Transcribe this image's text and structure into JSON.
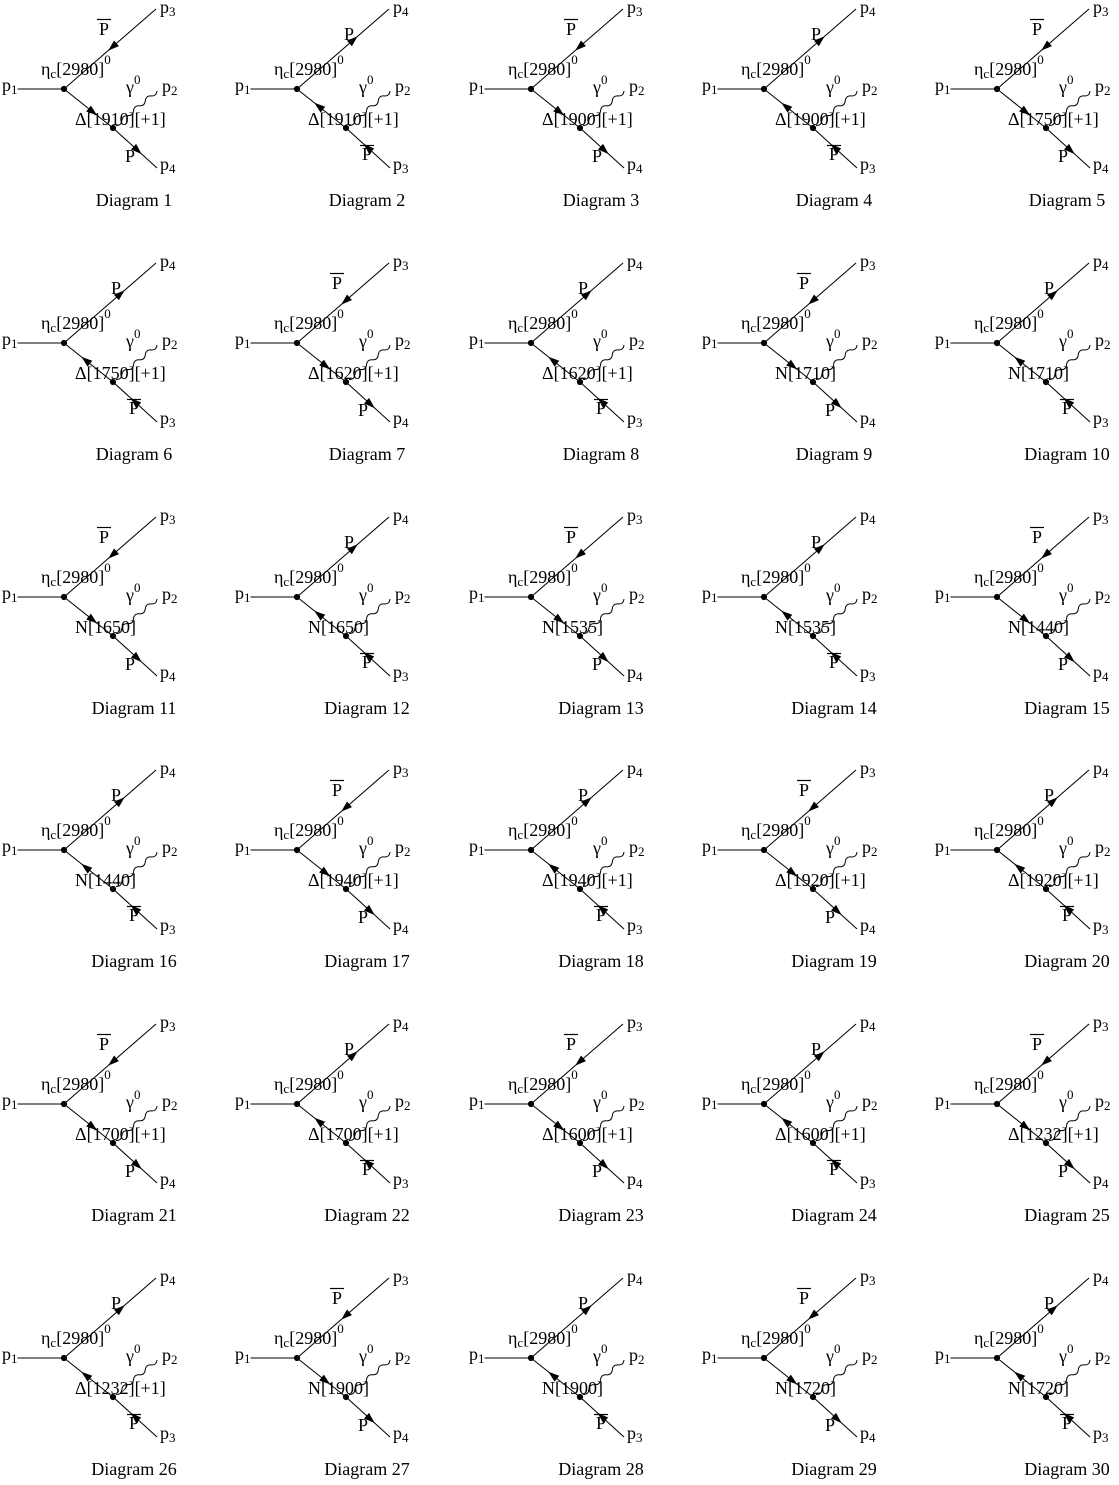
{
  "page": {
    "background": "#ffffff",
    "ink": "#000000"
  },
  "shared": {
    "incoming_momentum": {
      "base": "p",
      "sub": "1"
    },
    "photon_momentum": {
      "base": "p",
      "sub": "2"
    },
    "initial_state": {
      "symbol": "η",
      "sub": "c",
      "mass": "[2980]",
      "charge_sup": "0"
    },
    "photon": {
      "symbol": "γ",
      "sup": "0"
    }
  },
  "diagrams": [
    {
      "number": 1,
      "caption": "Diagram 1",
      "resonance": "Δ[1910][+1]",
      "variant": "a",
      "top": {
        "particle": "P",
        "antibar": true,
        "momentum": {
          "base": "p",
          "sub": "3"
        }
      },
      "bottom": {
        "particle": "P",
        "antibar": false,
        "momentum": {
          "base": "p",
          "sub": "4"
        }
      }
    },
    {
      "number": 2,
      "caption": "Diagram 2",
      "resonance": "Δ[1910][+1]",
      "variant": "b",
      "top": {
        "particle": "P",
        "antibar": false,
        "momentum": {
          "base": "p",
          "sub": "4"
        }
      },
      "bottom": {
        "particle": "P",
        "antibar": true,
        "momentum": {
          "base": "p",
          "sub": "3"
        }
      }
    },
    {
      "number": 3,
      "caption": "Diagram 3",
      "resonance": "Δ[1900][+1]",
      "variant": "a",
      "top": {
        "particle": "P",
        "antibar": true,
        "momentum": {
          "base": "p",
          "sub": "3"
        }
      },
      "bottom": {
        "particle": "P",
        "antibar": false,
        "momentum": {
          "base": "p",
          "sub": "4"
        }
      }
    },
    {
      "number": 4,
      "caption": "Diagram 4",
      "resonance": "Δ[1900][+1]",
      "variant": "b",
      "top": {
        "particle": "P",
        "antibar": false,
        "momentum": {
          "base": "p",
          "sub": "4"
        }
      },
      "bottom": {
        "particle": "P",
        "antibar": true,
        "momentum": {
          "base": "p",
          "sub": "3"
        }
      }
    },
    {
      "number": 5,
      "caption": "Diagram 5",
      "resonance": "Δ[1750][+1]",
      "variant": "a",
      "top": {
        "particle": "P",
        "antibar": true,
        "momentum": {
          "base": "p",
          "sub": "3"
        }
      },
      "bottom": {
        "particle": "P",
        "antibar": false,
        "momentum": {
          "base": "p",
          "sub": "4"
        }
      }
    },
    {
      "number": 6,
      "caption": "Diagram 6",
      "resonance": "Δ[1750][+1]",
      "variant": "b",
      "top": {
        "particle": "P",
        "antibar": false,
        "momentum": {
          "base": "p",
          "sub": "4"
        }
      },
      "bottom": {
        "particle": "P",
        "antibar": true,
        "momentum": {
          "base": "p",
          "sub": "3"
        }
      }
    },
    {
      "number": 7,
      "caption": "Diagram 7",
      "resonance": "Δ[1620][+1]",
      "variant": "a",
      "top": {
        "particle": "P",
        "antibar": true,
        "momentum": {
          "base": "p",
          "sub": "3"
        }
      },
      "bottom": {
        "particle": "P",
        "antibar": false,
        "momentum": {
          "base": "p",
          "sub": "4"
        }
      }
    },
    {
      "number": 8,
      "caption": "Diagram 8",
      "resonance": "Δ[1620][+1]",
      "variant": "b",
      "top": {
        "particle": "P",
        "antibar": false,
        "momentum": {
          "base": "p",
          "sub": "4"
        }
      },
      "bottom": {
        "particle": "P",
        "antibar": true,
        "momentum": {
          "base": "p",
          "sub": "3"
        }
      }
    },
    {
      "number": 9,
      "caption": "Diagram 9",
      "resonance": "N[1710]",
      "variant": "a",
      "top": {
        "particle": "P",
        "antibar": true,
        "momentum": {
          "base": "p",
          "sub": "3"
        }
      },
      "bottom": {
        "particle": "P",
        "antibar": false,
        "momentum": {
          "base": "p",
          "sub": "4"
        }
      }
    },
    {
      "number": 10,
      "caption": "Diagram 10",
      "resonance": "N[1710]",
      "variant": "b",
      "top": {
        "particle": "P",
        "antibar": false,
        "momentum": {
          "base": "p",
          "sub": "4"
        }
      },
      "bottom": {
        "particle": "P",
        "antibar": true,
        "momentum": {
          "base": "p",
          "sub": "3"
        }
      }
    },
    {
      "number": 11,
      "caption": "Diagram 11",
      "resonance": "N[1650]",
      "variant": "a",
      "top": {
        "particle": "P",
        "antibar": true,
        "momentum": {
          "base": "p",
          "sub": "3"
        }
      },
      "bottom": {
        "particle": "P",
        "antibar": false,
        "momentum": {
          "base": "p",
          "sub": "4"
        }
      }
    },
    {
      "number": 12,
      "caption": "Diagram 12",
      "resonance": "N[1650]",
      "variant": "b",
      "top": {
        "particle": "P",
        "antibar": false,
        "momentum": {
          "base": "p",
          "sub": "4"
        }
      },
      "bottom": {
        "particle": "P",
        "antibar": true,
        "momentum": {
          "base": "p",
          "sub": "3"
        }
      }
    },
    {
      "number": 13,
      "caption": "Diagram 13",
      "resonance": "N[1535]",
      "variant": "a",
      "top": {
        "particle": "P",
        "antibar": true,
        "momentum": {
          "base": "p",
          "sub": "3"
        }
      },
      "bottom": {
        "particle": "P",
        "antibar": false,
        "momentum": {
          "base": "p",
          "sub": "4"
        }
      }
    },
    {
      "number": 14,
      "caption": "Diagram 14",
      "resonance": "N[1535]",
      "variant": "b",
      "top": {
        "particle": "P",
        "antibar": false,
        "momentum": {
          "base": "p",
          "sub": "4"
        }
      },
      "bottom": {
        "particle": "P",
        "antibar": true,
        "momentum": {
          "base": "p",
          "sub": "3"
        }
      }
    },
    {
      "number": 15,
      "caption": "Diagram 15",
      "resonance": "N[1440]",
      "variant": "a",
      "top": {
        "particle": "P",
        "antibar": true,
        "momentum": {
          "base": "p",
          "sub": "3"
        }
      },
      "bottom": {
        "particle": "P",
        "antibar": false,
        "momentum": {
          "base": "p",
          "sub": "4"
        }
      }
    },
    {
      "number": 16,
      "caption": "Diagram 16",
      "resonance": "N[1440]",
      "variant": "b",
      "top": {
        "particle": "P",
        "antibar": false,
        "momentum": {
          "base": "p",
          "sub": "4"
        }
      },
      "bottom": {
        "particle": "P",
        "antibar": true,
        "momentum": {
          "base": "p",
          "sub": "3"
        }
      }
    },
    {
      "number": 17,
      "caption": "Diagram 17",
      "resonance": "Δ[1940][+1]",
      "variant": "a",
      "top": {
        "particle": "P",
        "antibar": true,
        "momentum": {
          "base": "p",
          "sub": "3"
        }
      },
      "bottom": {
        "particle": "P",
        "antibar": false,
        "momentum": {
          "base": "p",
          "sub": "4"
        }
      }
    },
    {
      "number": 18,
      "caption": "Diagram 18",
      "resonance": "Δ[1940][+1]",
      "variant": "b",
      "top": {
        "particle": "P",
        "antibar": false,
        "momentum": {
          "base": "p",
          "sub": "4"
        }
      },
      "bottom": {
        "particle": "P",
        "antibar": true,
        "momentum": {
          "base": "p",
          "sub": "3"
        }
      }
    },
    {
      "number": 19,
      "caption": "Diagram 19",
      "resonance": "Δ[1920][+1]",
      "variant": "a",
      "top": {
        "particle": "P",
        "antibar": true,
        "momentum": {
          "base": "p",
          "sub": "3"
        }
      },
      "bottom": {
        "particle": "P",
        "antibar": false,
        "momentum": {
          "base": "p",
          "sub": "4"
        }
      }
    },
    {
      "number": 20,
      "caption": "Diagram 20",
      "resonance": "Δ[1920][+1]",
      "variant": "b",
      "top": {
        "particle": "P",
        "antibar": false,
        "momentum": {
          "base": "p",
          "sub": "4"
        }
      },
      "bottom": {
        "particle": "P",
        "antibar": true,
        "momentum": {
          "base": "p",
          "sub": "3"
        }
      }
    },
    {
      "number": 21,
      "caption": "Diagram 21",
      "resonance": "Δ[1700][+1]",
      "variant": "a",
      "top": {
        "particle": "P",
        "antibar": true,
        "momentum": {
          "base": "p",
          "sub": "3"
        }
      },
      "bottom": {
        "particle": "P",
        "antibar": false,
        "momentum": {
          "base": "p",
          "sub": "4"
        }
      }
    },
    {
      "number": 22,
      "caption": "Diagram 22",
      "resonance": "Δ[1700][+1]",
      "variant": "b",
      "top": {
        "particle": "P",
        "antibar": false,
        "momentum": {
          "base": "p",
          "sub": "4"
        }
      },
      "bottom": {
        "particle": "P",
        "antibar": true,
        "momentum": {
          "base": "p",
          "sub": "3"
        }
      }
    },
    {
      "number": 23,
      "caption": "Diagram 23",
      "resonance": "Δ[1600][+1]",
      "variant": "a",
      "top": {
        "particle": "P",
        "antibar": true,
        "momentum": {
          "base": "p",
          "sub": "3"
        }
      },
      "bottom": {
        "particle": "P",
        "antibar": false,
        "momentum": {
          "base": "p",
          "sub": "4"
        }
      }
    },
    {
      "number": 24,
      "caption": "Diagram 24",
      "resonance": "Δ[1600][+1]",
      "variant": "b",
      "top": {
        "particle": "P",
        "antibar": false,
        "momentum": {
          "base": "p",
          "sub": "4"
        }
      },
      "bottom": {
        "particle": "P",
        "antibar": true,
        "momentum": {
          "base": "p",
          "sub": "3"
        }
      }
    },
    {
      "number": 25,
      "caption": "Diagram 25",
      "resonance": "Δ[1232][+1]",
      "variant": "a",
      "top": {
        "particle": "P",
        "antibar": true,
        "momentum": {
          "base": "p",
          "sub": "3"
        }
      },
      "bottom": {
        "particle": "P",
        "antibar": false,
        "momentum": {
          "base": "p",
          "sub": "4"
        }
      }
    },
    {
      "number": 26,
      "caption": "Diagram 26",
      "resonance": "Δ[1232][+1]",
      "variant": "b",
      "top": {
        "particle": "P",
        "antibar": false,
        "momentum": {
          "base": "p",
          "sub": "4"
        }
      },
      "bottom": {
        "particle": "P",
        "antibar": true,
        "momentum": {
          "base": "p",
          "sub": "3"
        }
      }
    },
    {
      "number": 27,
      "caption": "Diagram 27",
      "resonance": "N[1900]",
      "variant": "a",
      "top": {
        "particle": "P",
        "antibar": true,
        "momentum": {
          "base": "p",
          "sub": "3"
        }
      },
      "bottom": {
        "particle": "P",
        "antibar": false,
        "momentum": {
          "base": "p",
          "sub": "4"
        }
      }
    },
    {
      "number": 28,
      "caption": "Diagram 28",
      "resonance": "N[1900]",
      "variant": "b",
      "top": {
        "particle": "P",
        "antibar": false,
        "momentum": {
          "base": "p",
          "sub": "4"
        }
      },
      "bottom": {
        "particle": "P",
        "antibar": true,
        "momentum": {
          "base": "p",
          "sub": "3"
        }
      }
    },
    {
      "number": 29,
      "caption": "Diagram 29",
      "resonance": "N[1720]",
      "variant": "a",
      "top": {
        "particle": "P",
        "antibar": true,
        "momentum": {
          "base": "p",
          "sub": "3"
        }
      },
      "bottom": {
        "particle": "P",
        "antibar": false,
        "momentum": {
          "base": "p",
          "sub": "4"
        }
      }
    },
    {
      "number": 30,
      "caption": "Diagram 30",
      "resonance": "N[1720]",
      "variant": "b",
      "top": {
        "particle": "P",
        "antibar": false,
        "momentum": {
          "base": "p",
          "sub": "4"
        }
      },
      "bottom": {
        "particle": "P",
        "antibar": true,
        "momentum": {
          "base": "p",
          "sub": "3"
        }
      }
    }
  ]
}
